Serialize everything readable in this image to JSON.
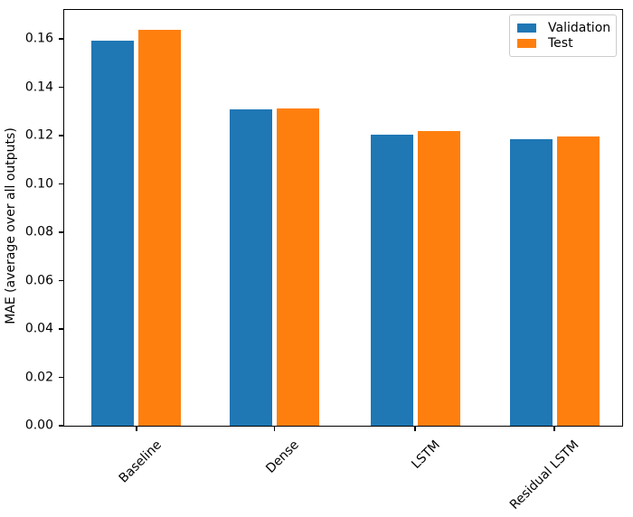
{
  "chart_data": {
    "type": "bar",
    "title": "",
    "xlabel": "",
    "ylabel": "MAE (average over all outputs)",
    "categories": [
      "Baseline",
      "Dense",
      "LSTM",
      "Residual LSTM"
    ],
    "series": [
      {
        "name": "Validation",
        "color": "#1f77b4",
        "values": [
          0.1593,
          0.1308,
          0.1203,
          0.1186
        ]
      },
      {
        "name": "Test",
        "color": "#ff7f0e",
        "values": [
          0.1636,
          0.1311,
          0.1218,
          0.1196
        ]
      }
    ],
    "ylim": [
      0,
      0.172
    ],
    "yticks": [
      "0.00",
      "0.02",
      "0.04",
      "0.06",
      "0.08",
      "0.10",
      "0.12",
      "0.14",
      "0.16"
    ],
    "xtick_rotation": 45,
    "grid": false,
    "legend_position": "upper right"
  }
}
